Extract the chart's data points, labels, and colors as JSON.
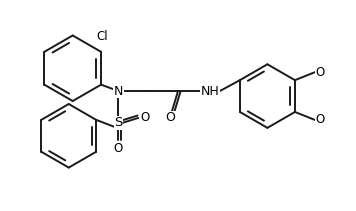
{
  "background_color": "#ffffff",
  "line_color": "#1a1a1a",
  "line_width": 1.4,
  "text_color": "#000000",
  "figsize": [
    3.56,
    2.11
  ],
  "dpi": 100,
  "font_size_atom": 8.5,
  "font_size_label": 8.0,
  "xlim": [
    0,
    356
  ],
  "ylim": [
    0,
    211
  ]
}
